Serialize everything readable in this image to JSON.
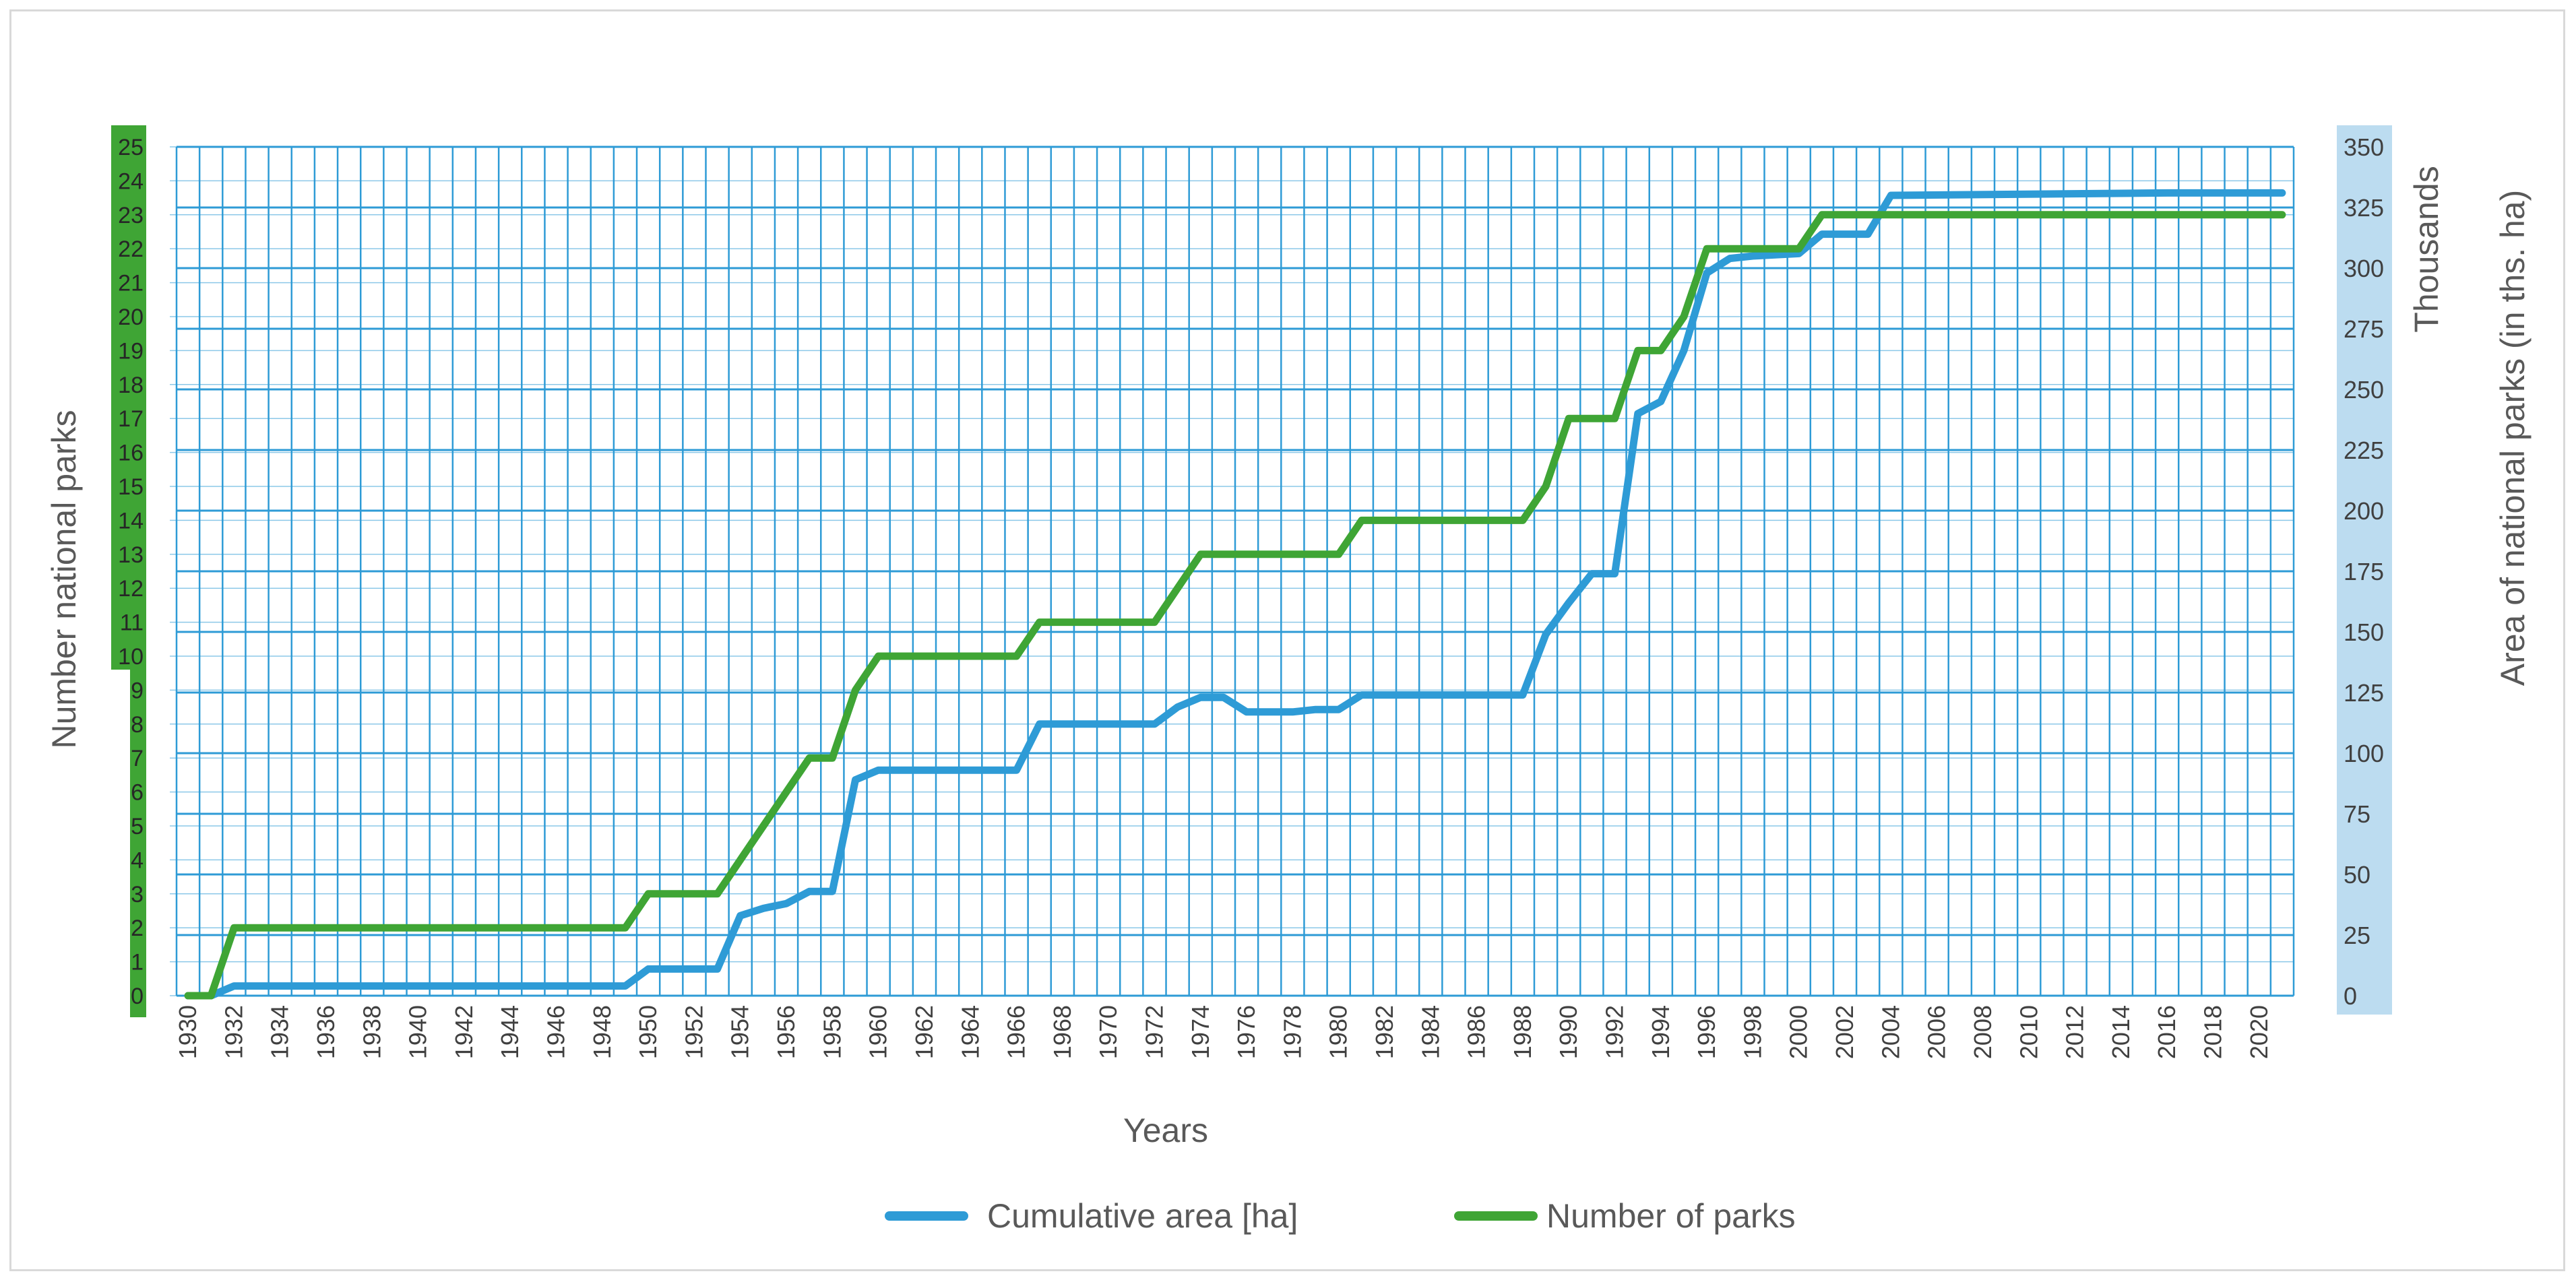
{
  "chart_data": {
    "type": "line",
    "xlabel": "Years",
    "ylabel_left": "Number national parks",
    "ylabel_right": "Area of national parks (in ths. ha)",
    "right_axis_units_label": "Thousands",
    "x_range": [
      1930,
      2021
    ],
    "x_tick_labels": [
      "1930",
      "1932",
      "1934",
      "1936",
      "1938",
      "1940",
      "1942",
      "1944",
      "1946",
      "1948",
      "1950",
      "1952",
      "1954",
      "1956",
      "1958",
      "1960",
      "1962",
      "1964",
      "1966",
      "1968",
      "1970",
      "1972",
      "1974",
      "1976",
      "1978",
      "1980",
      "1982",
      "1984",
      "1986",
      "1988",
      "1990",
      "1992",
      "1994",
      "1996",
      "1998",
      "2000",
      "2002",
      "2004",
      "2006",
      "2008",
      "2010",
      "2012",
      "2014",
      "2016",
      "2018",
      "2020"
    ],
    "y_left_range": [
      0,
      25
    ],
    "y_left_ticks": [
      "0",
      "1",
      "2",
      "3",
      "4",
      "5",
      "6",
      "7",
      "8",
      "9",
      "10",
      "11",
      "12",
      "13",
      "14",
      "15",
      "16",
      "17",
      "18",
      "19",
      "20",
      "21",
      "22",
      "23",
      "24",
      "25"
    ],
    "y_right_range": [
      0,
      350
    ],
    "y_right_ticks": [
      "0",
      "25",
      "50",
      "75",
      "100",
      "125",
      "150",
      "175",
      "200",
      "225",
      "250",
      "275",
      "300",
      "325",
      "350"
    ],
    "grid": true,
    "legend_position": "bottom",
    "colors": {
      "area_series": "#2e9bd6",
      "parks_series": "#3fa535",
      "left_axis_band": "#3fa535",
      "right_axis_band": "#bcdcf0",
      "grid": "#2e9bd6"
    },
    "series": [
      {
        "name": "Cumulative area [ha]",
        "axis": "right",
        "x": [
          1930,
          1931,
          1932,
          1933,
          1949,
          1950,
          1951,
          1953,
          1954,
          1955,
          1956,
          1957,
          1958,
          1959,
          1960,
          1966,
          1967,
          1972,
          1973,
          1974,
          1975,
          1976,
          1978,
          1979,
          1980,
          1981,
          1988,
          1989,
          1990,
          1991,
          1992,
          1993,
          1994,
          1995,
          1996,
          1997,
          1998,
          2000,
          2001,
          2003,
          2004,
          2016,
          2021
        ],
        "values": [
          0,
          0,
          4,
          4,
          4,
          11,
          11,
          11,
          33,
          36,
          38,
          43,
          43,
          89,
          93,
          93,
          112,
          112,
          119,
          123,
          123,
          117,
          117,
          118,
          118,
          124,
          124,
          149,
          162,
          174,
          174,
          240,
          245,
          266,
          298,
          304,
          305,
          306,
          314,
          314,
          330,
          331,
          331
        ]
      },
      {
        "name": "Number of parks",
        "axis": "left",
        "x": [
          1930,
          1931,
          1932,
          1933,
          1949,
          1950,
          1951,
          1953,
          1954,
          1955,
          1956,
          1957,
          1958,
          1959,
          1960,
          1966,
          1967,
          1972,
          1973,
          1974,
          1980,
          1981,
          1988,
          1989,
          1990,
          1992,
          1993,
          1994,
          1995,
          1996,
          2000,
          2001,
          2003,
          2021
        ],
        "values": [
          0,
          0,
          2,
          2,
          2,
          3,
          3,
          3,
          4,
          5,
          6,
          7,
          7,
          9,
          10,
          10,
          11,
          11,
          12,
          13,
          13,
          14,
          14,
          15,
          17,
          17,
          19,
          19,
          20,
          22,
          22,
          23,
          23,
          23
        ]
      }
    ]
  }
}
